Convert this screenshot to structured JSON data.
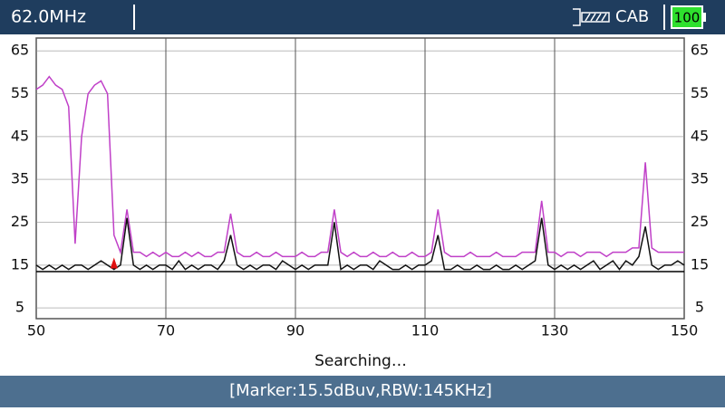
{
  "header": {
    "frequency": "62.0MHz",
    "mode": "CAB",
    "battery": "100"
  },
  "chart_data": {
    "type": "line",
    "x": [
      50,
      51,
      52,
      53,
      54,
      55,
      56,
      57,
      58,
      59,
      60,
      61,
      62,
      63,
      64,
      65,
      66,
      67,
      68,
      69,
      70,
      71,
      72,
      73,
      74,
      75,
      76,
      77,
      78,
      79,
      80,
      81,
      82,
      83,
      84,
      85,
      86,
      87,
      88,
      89,
      90,
      91,
      92,
      93,
      94,
      95,
      96,
      97,
      98,
      99,
      100,
      101,
      102,
      103,
      104,
      105,
      106,
      107,
      108,
      109,
      110,
      111,
      112,
      113,
      114,
      115,
      116,
      117,
      118,
      119,
      120,
      121,
      122,
      123,
      124,
      125,
      126,
      127,
      128,
      129,
      130,
      131,
      132,
      133,
      134,
      135,
      136,
      137,
      138,
      139,
      140,
      141,
      142,
      143,
      144,
      145,
      146,
      147,
      148,
      149,
      150
    ],
    "series": [
      {
        "color": "#c040c8",
        "values": [
          56,
          57,
          59,
          57,
          56,
          52,
          20,
          45,
          55,
          57,
          58,
          55,
          22,
          18,
          28,
          18,
          18,
          17,
          18,
          17,
          18,
          17,
          17,
          18,
          17,
          18,
          17,
          17,
          18,
          18,
          27,
          18,
          17,
          17,
          18,
          17,
          17,
          18,
          17,
          17,
          17,
          18,
          17,
          17,
          18,
          18,
          28,
          18,
          17,
          18,
          17,
          17,
          18,
          17,
          17,
          18,
          17,
          17,
          18,
          17,
          17,
          18,
          28,
          18,
          17,
          17,
          17,
          18,
          17,
          17,
          17,
          18,
          17,
          17,
          17,
          18,
          18,
          18,
          30,
          18,
          18,
          17,
          18,
          18,
          17,
          18,
          18,
          18,
          17,
          18,
          18,
          18,
          19,
          19,
          39,
          19,
          18,
          18,
          18,
          18,
          18
        ]
      },
      {
        "color": "#111111",
        "values": [
          15,
          14,
          15,
          14,
          15,
          14,
          15,
          15,
          14,
          15,
          16,
          15,
          14,
          15,
          26,
          15,
          14,
          15,
          14,
          15,
          15,
          14,
          16,
          14,
          15,
          14,
          15,
          15,
          14,
          16,
          22,
          15,
          14,
          15,
          14,
          15,
          15,
          14,
          16,
          15,
          14,
          15,
          14,
          15,
          15,
          15,
          25,
          14,
          15,
          14,
          15,
          15,
          14,
          16,
          15,
          14,
          14,
          15,
          14,
          15,
          15,
          16,
          22,
          14,
          14,
          15,
          14,
          14,
          15,
          14,
          14,
          15,
          14,
          14,
          15,
          14,
          15,
          16,
          26,
          15,
          14,
          15,
          14,
          15,
          14,
          15,
          16,
          14,
          15,
          16,
          14,
          16,
          15,
          17,
          24,
          15,
          14,
          15,
          15,
          16,
          15
        ]
      }
    ],
    "xlim": [
      50,
      150
    ],
    "xticks": [
      50,
      70,
      90,
      110,
      130,
      150
    ],
    "ylim": [
      2.5,
      68
    ],
    "yticks": [
      5,
      15,
      25,
      35,
      45,
      55,
      65
    ],
    "ref_line": 13.5,
    "marker": {
      "x": 62,
      "y": 15.5
    },
    "grid": true
  },
  "status": "Searching…",
  "footer": "[Marker:15.5dBuv,RBW:145KHz]"
}
